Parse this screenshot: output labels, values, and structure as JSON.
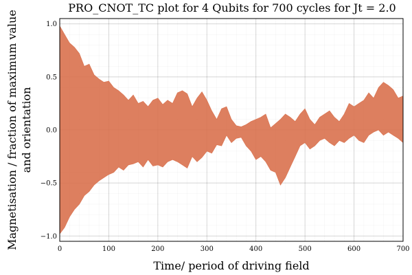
{
  "chart_data": {
    "type": "area",
    "title": "PRO_CNOT_TC plot for 4 Qubits for 700 cycles for Jt = 2.0",
    "xlabel": "Time/ period of driving field",
    "ylabel_line1": "Magnetisation / fraction of maximum value",
    "ylabel_line2": "and orientation",
    "xlim": [
      0,
      700
    ],
    "ylim": [
      -1.05,
      1.05
    ],
    "xticks": [
      0,
      100,
      200,
      300,
      400,
      500,
      600,
      700
    ],
    "xtick_labels": [
      "0",
      "100",
      "200",
      "300",
      "400",
      "500",
      "600",
      "700"
    ],
    "yticks": [
      -1.0,
      -0.5,
      0.0,
      0.5,
      1.0
    ],
    "ytick_labels": [
      "−1.0",
      "−0.5",
      "0.0",
      "0.5",
      "1.0"
    ],
    "grid": true,
    "minor_grid": true,
    "legend": "none",
    "series_color": "#d9714e",
    "series": [
      {
        "x": [
          0,
          10,
          20,
          30,
          40,
          50,
          60,
          70,
          80,
          90,
          100,
          110,
          120,
          130,
          140,
          150,
          160,
          170,
          180,
          190,
          200,
          210,
          220,
          230,
          240,
          250,
          260,
          270,
          280,
          290,
          300,
          310,
          320,
          330,
          340,
          350,
          360,
          370,
          380,
          390,
          400,
          410,
          420,
          430,
          440,
          450,
          460,
          470,
          480,
          490,
          500,
          510,
          520,
          530,
          540,
          550,
          560,
          570,
          580,
          590,
          600,
          610,
          620,
          630,
          640,
          650,
          660,
          670,
          680,
          690,
          700
        ],
        "upper": [
          0.98,
          0.9,
          0.82,
          0.78,
          0.72,
          0.6,
          0.62,
          0.52,
          0.48,
          0.45,
          0.46,
          0.4,
          0.37,
          0.33,
          0.28,
          0.33,
          0.25,
          0.27,
          0.22,
          0.28,
          0.3,
          0.24,
          0.28,
          0.25,
          0.35,
          0.37,
          0.34,
          0.22,
          0.3,
          0.36,
          0.28,
          0.18,
          0.1,
          0.2,
          0.22,
          0.1,
          0.04,
          0.03,
          0.05,
          0.08,
          0.1,
          0.12,
          0.15,
          0.02,
          0.06,
          0.1,
          0.15,
          0.12,
          0.08,
          0.15,
          0.2,
          0.1,
          0.05,
          0.12,
          0.15,
          0.18,
          0.12,
          0.08,
          0.15,
          0.25,
          0.22,
          0.25,
          0.28,
          0.35,
          0.3,
          0.4,
          0.45,
          0.42,
          0.38,
          0.3,
          0.32
        ],
        "lower": [
          -0.98,
          -0.92,
          -0.82,
          -0.75,
          -0.7,
          -0.62,
          -0.58,
          -0.52,
          -0.48,
          -0.45,
          -0.42,
          -0.4,
          -0.35,
          -0.38,
          -0.33,
          -0.32,
          -0.3,
          -0.35,
          -0.28,
          -0.34,
          -0.33,
          -0.35,
          -0.3,
          -0.28,
          -0.3,
          -0.33,
          -0.36,
          -0.25,
          -0.3,
          -0.26,
          -0.2,
          -0.22,
          -0.14,
          -0.15,
          -0.05,
          -0.12,
          -0.08,
          -0.07,
          -0.15,
          -0.2,
          -0.28,
          -0.25,
          -0.3,
          -0.38,
          -0.4,
          -0.52,
          -0.45,
          -0.35,
          -0.25,
          -0.15,
          -0.12,
          -0.18,
          -0.15,
          -0.1,
          -0.08,
          -0.12,
          -0.15,
          -0.1,
          -0.12,
          -0.08,
          -0.05,
          -0.1,
          -0.12,
          -0.05,
          -0.02,
          0.0,
          -0.05,
          -0.02,
          -0.05,
          -0.08,
          -0.12
        ]
      }
    ]
  }
}
